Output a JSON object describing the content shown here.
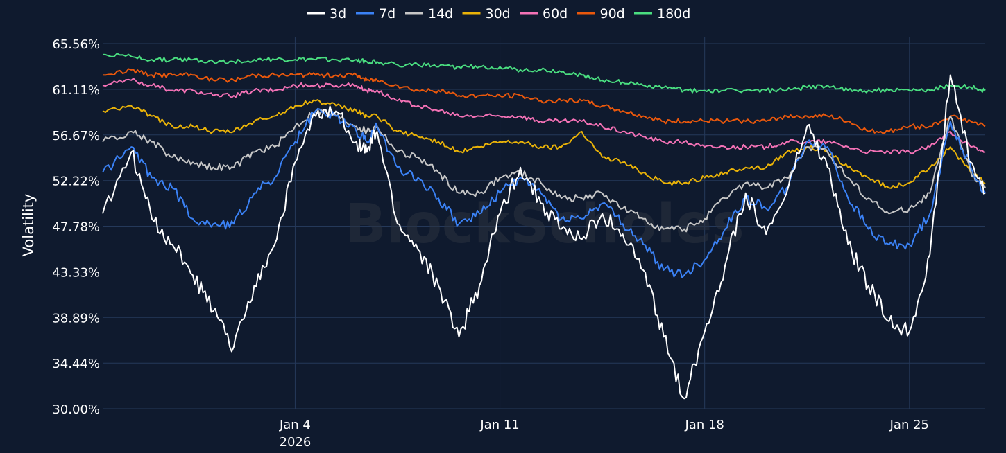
{
  "colors": {
    "background": "#0f1a2e",
    "grid": "#25395a",
    "text": "#ffffff",
    "watermark": "#2b3240"
  },
  "watermark": "BlockScholes",
  "chart_data": {
    "type": "line",
    "title": "",
    "xlabel": "",
    "ylabel": "Volatility",
    "ylim": [
      30.0,
      65.56
    ],
    "xlim": [
      -9.4,
      33.7
    ],
    "yticks": [
      30.0,
      34.44,
      38.89,
      43.33,
      47.78,
      52.22,
      56.67,
      61.11,
      65.56
    ],
    "ytick_labels": [
      "30.00%",
      "34.44%",
      "38.89%",
      "43.33%",
      "47.78%",
      "52.22%",
      "56.67%",
      "61.11%",
      "65.56%"
    ],
    "xticks": [
      {
        "day": 0,
        "label": "Jan 4",
        "sublabel": "2026"
      },
      {
        "day": 10,
        "label": "Jan 11",
        "sublabel": ""
      },
      {
        "day": 20,
        "label": "Jan 18",
        "sublabel": ""
      },
      {
        "day": 30,
        "label": "Jan 25",
        "sublabel": ""
      }
    ],
    "x_unit": "days since Jan 4 2026",
    "legend_position": "top-center",
    "x": [
      -9.4,
      -8.0,
      -7.0,
      -6.0,
      -5.0,
      -4.0,
      -3.0,
      -2.0,
      -1.0,
      0.0,
      1.0,
      2.0,
      3.0,
      3.5,
      4.0,
      5.0,
      6.0,
      7.0,
      8.0,
      9.0,
      10.0,
      11.0,
      12.0,
      13.0,
      14.0,
      15.0,
      16.0,
      17.0,
      18.0,
      19.0,
      20.0,
      21.0,
      22.0,
      23.0,
      24.0,
      25.0,
      26.0,
      27.0,
      28.0,
      29.0,
      30.0,
      31.0,
      32.0,
      33.0,
      33.7
    ],
    "series": [
      {
        "name": "3d",
        "color": "#ffffff",
        "values": [
          49.0,
          55.0,
          48.5,
          46.0,
          43.0,
          39.5,
          36.0,
          42.0,
          46.0,
          54.0,
          58.5,
          59.0,
          56.0,
          55.0,
          57.0,
          48.0,
          45.5,
          42.0,
          37.0,
          42.0,
          49.0,
          53.5,
          50.0,
          47.5,
          46.5,
          49.0,
          47.0,
          43.5,
          37.0,
          31.0,
          37.5,
          44.0,
          51.0,
          47.0,
          51.0,
          57.5,
          53.5,
          46.0,
          42.0,
          38.5,
          37.5,
          45.0,
          62.5,
          54.0,
          51.0
        ]
      },
      {
        "name": "7d",
        "color": "#3b82f6",
        "values": [
          53.0,
          55.5,
          52.5,
          51.5,
          48.5,
          48.0,
          48.0,
          51.0,
          52.5,
          56.0,
          59.0,
          58.5,
          57.0,
          56.0,
          57.5,
          53.5,
          52.5,
          50.5,
          48.0,
          49.0,
          51.0,
          52.5,
          51.0,
          48.5,
          48.5,
          50.0,
          48.0,
          46.0,
          43.5,
          43.0,
          44.5,
          47.5,
          50.5,
          49.5,
          51.5,
          56.0,
          55.5,
          50.5,
          47.5,
          46.0,
          46.0,
          49.0,
          58.0,
          53.5,
          51.0
        ]
      },
      {
        "name": "14d",
        "color": "#c7c7c7",
        "values": [
          56.0,
          57.0,
          56.0,
          54.5,
          54.0,
          53.5,
          53.5,
          55.0,
          55.5,
          57.5,
          59.0,
          58.5,
          57.5,
          57.0,
          57.5,
          55.0,
          54.5,
          53.0,
          51.0,
          51.0,
          52.5,
          53.0,
          52.0,
          50.5,
          50.5,
          51.0,
          49.5,
          48.5,
          47.5,
          47.5,
          48.5,
          50.5,
          52.0,
          51.5,
          52.5,
          55.5,
          55.0,
          52.5,
          50.5,
          49.0,
          49.5,
          51.0,
          58.5,
          53.0,
          51.5
        ]
      },
      {
        "name": "30d",
        "color": "#eab308",
        "values": [
          59.0,
          59.5,
          58.5,
          57.5,
          57.5,
          57.0,
          57.0,
          58.0,
          58.5,
          59.5,
          60.0,
          59.5,
          59.0,
          58.5,
          58.5,
          57.0,
          56.5,
          56.0,
          55.0,
          55.5,
          56.0,
          56.0,
          55.5,
          55.5,
          57.0,
          54.5,
          54.0,
          53.0,
          52.0,
          52.0,
          52.5,
          53.0,
          53.5,
          53.5,
          55.0,
          55.5,
          55.0,
          53.5,
          52.5,
          51.5,
          52.0,
          53.5,
          55.5,
          53.0,
          52.0
        ]
      },
      {
        "name": "60d",
        "color": "#f472b6",
        "values": [
          61.5,
          62.0,
          61.5,
          61.0,
          61.0,
          60.5,
          60.5,
          61.0,
          61.0,
          61.5,
          61.5,
          61.5,
          61.5,
          61.0,
          61.0,
          60.0,
          59.5,
          59.0,
          58.5,
          58.5,
          58.5,
          58.5,
          58.0,
          58.0,
          58.0,
          57.5,
          57.0,
          56.5,
          56.0,
          56.0,
          55.5,
          55.5,
          55.5,
          55.5,
          56.0,
          56.0,
          56.0,
          55.5,
          55.0,
          55.0,
          55.0,
          55.5,
          57.0,
          55.5,
          55.0
        ]
      },
      {
        "name": "90d",
        "color": "#ea580c",
        "values": [
          62.5,
          63.0,
          62.5,
          62.5,
          62.5,
          62.0,
          62.0,
          62.5,
          62.5,
          62.5,
          62.5,
          62.5,
          62.5,
          62.0,
          62.0,
          61.5,
          61.0,
          61.0,
          60.5,
          60.5,
          60.5,
          60.5,
          60.0,
          60.0,
          60.0,
          59.5,
          59.0,
          58.5,
          58.0,
          58.0,
          58.0,
          58.0,
          58.0,
          58.0,
          58.5,
          58.5,
          58.5,
          58.0,
          57.0,
          57.0,
          57.5,
          57.5,
          58.5,
          58.0,
          57.5
        ]
      },
      {
        "name": "180d",
        "color": "#4ade80",
        "values": [
          64.5,
          64.3,
          64.0,
          64.0,
          64.0,
          63.8,
          63.8,
          64.0,
          64.0,
          64.0,
          64.0,
          64.0,
          64.0,
          63.8,
          63.8,
          63.5,
          63.5,
          63.3,
          63.3,
          63.3,
          63.3,
          63.0,
          63.0,
          62.8,
          62.5,
          62.0,
          61.8,
          61.5,
          61.3,
          61.0,
          61.0,
          61.0,
          61.0,
          61.0,
          61.0,
          61.3,
          61.5,
          61.0,
          61.0,
          61.0,
          61.0,
          61.0,
          61.5,
          61.3,
          61.0
        ]
      }
    ]
  }
}
